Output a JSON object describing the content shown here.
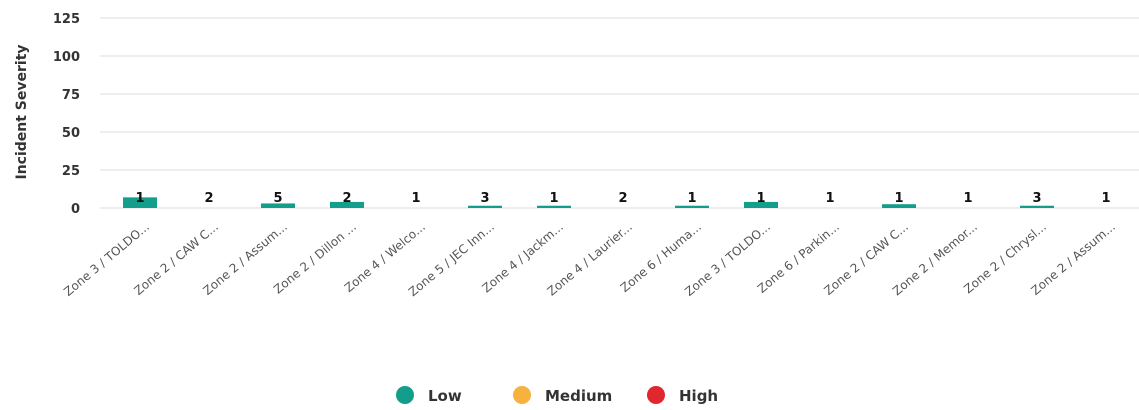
{
  "chart_data": {
    "type": "bar",
    "title": "",
    "xlabel": "",
    "ylabel": "Incident Severity",
    "ylim": [
      0,
      125
    ],
    "yticks": [
      0,
      25,
      50,
      75,
      100,
      125
    ],
    "grid": true,
    "legend_position": "bottom-center",
    "categories": [
      "Zone 3 / TOLDO...",
      "Zone 2 / CAW C...",
      "Zone 2 / Assum...",
      "Zone 2 / Dillon ...",
      "Zone 4 / Welco...",
      "Zone 5 / JEC Inn...",
      "Zone 4 / Jackm...",
      "Zone 4 / Laurier...",
      "Zone 6 / Huma...",
      "Zone 3 / TOLDO...",
      "Zone 6 / Parkin...",
      "Zone 2 / CAW C...",
      "Zone 2 / Memor...",
      "Zone 2 / Chrysl...",
      "Zone 2 / Assum..."
    ],
    "series": [
      {
        "name": "Low",
        "color": "#139e8c",
        "values": [
          7,
          0,
          3,
          4,
          0,
          1.5,
          1.5,
          0,
          1.5,
          4,
          0,
          2.5,
          0,
          1.5,
          0
        ]
      },
      {
        "name": "Medium",
        "color": "#f7b13f",
        "values": [
          0,
          0,
          0,
          0,
          0,
          0,
          0,
          0,
          0,
          0,
          0,
          0,
          0,
          0,
          0
        ]
      },
      {
        "name": "High",
        "color": "#e0262e",
        "values": [
          0,
          0,
          0,
          0,
          0,
          0,
          0,
          0,
          0,
          0,
          0,
          0,
          0,
          0,
          0
        ]
      }
    ],
    "data_labels": [
      "1",
      "2",
      "5",
      "2",
      "1",
      "3",
      "1",
      "2",
      "1",
      "1",
      "1",
      "1",
      "1",
      "3",
      "1"
    ]
  }
}
